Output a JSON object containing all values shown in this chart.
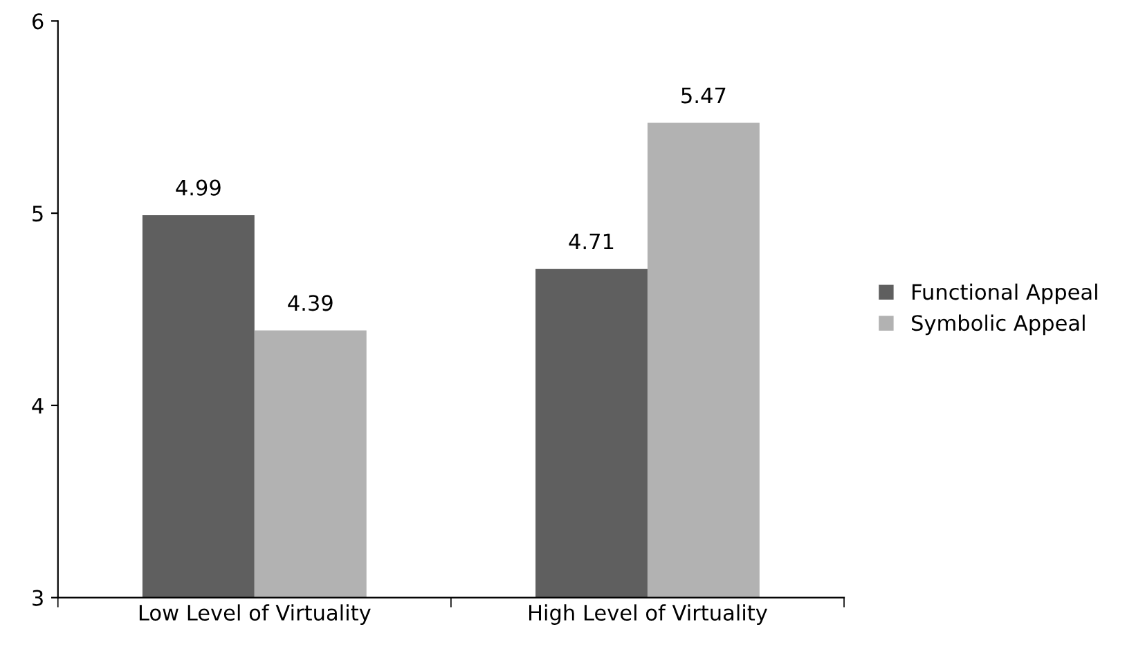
{
  "chart_data": {
    "type": "bar",
    "categories": [
      "Low Level of Virtuality",
      "High Level of Virtuality"
    ],
    "series": [
      {
        "name": "Functional Appeal",
        "color": "#5f5f5f",
        "values": [
          4.99,
          4.71
        ]
      },
      {
        "name": "Symbolic Appeal",
        "color": "#b2b2b2",
        "values": [
          4.39,
          5.47
        ]
      }
    ],
    "ylim": [
      3,
      6
    ],
    "yticks": [
      3,
      4,
      5,
      6
    ],
    "grid": false,
    "legend": "right",
    "data_labels": true
  }
}
